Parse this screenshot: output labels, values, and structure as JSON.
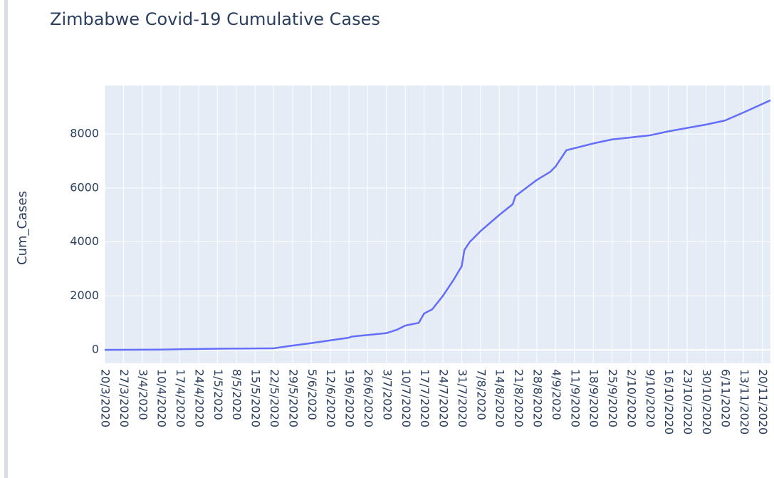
{
  "chart_data": {
    "type": "line",
    "title": "Zimbabwe Covid-19 Cumulative Cases",
    "y_label": "Cum_Cases",
    "grid": true,
    "x": [
      "2020-03-20",
      "2020-04-10",
      "2020-05-01",
      "2020-05-22",
      "2020-05-27",
      "2020-06-05",
      "2020-06-19",
      "2020-06-20",
      "2020-07-03",
      "2020-07-07",
      "2020-07-10",
      "2020-07-15",
      "2020-07-17",
      "2020-07-20",
      "2020-07-24",
      "2020-07-28",
      "2020-07-31",
      "2020-08-01",
      "2020-08-03",
      "2020-08-07",
      "2020-08-14",
      "2020-08-19",
      "2020-08-20",
      "2020-08-24",
      "2020-08-28",
      "2020-09-02",
      "2020-09-04",
      "2020-09-08",
      "2020-09-18",
      "2020-09-25",
      "2020-10-09",
      "2020-10-16",
      "2020-10-30",
      "2020-11-06",
      "2020-11-13",
      "2020-11-23"
    ],
    "series": [
      {
        "name": "Cum_Cases",
        "color": "#636efa",
        "values": [
          0,
          10,
          40,
          56,
          130,
          250,
          450,
          490,
          620,
          750,
          900,
          1000,
          1350,
          1500,
          2000,
          2600,
          3100,
          3700,
          4000,
          4400,
          5000,
          5400,
          5700,
          6000,
          6300,
          6600,
          6800,
          7400,
          7650,
          7800,
          7950,
          8100,
          8350,
          8500,
          8800,
          9250
        ]
      }
    ],
    "xlim": [
      "2020-03-20",
      "2020-11-23"
    ],
    "xticks": [
      {
        "value": "2020-03-20",
        "label": "20/3/2020"
      },
      {
        "value": "2020-03-27",
        "label": "27/3/2020"
      },
      {
        "value": "2020-04-03",
        "label": "3/4/2020"
      },
      {
        "value": "2020-04-10",
        "label": "10/4/2020"
      },
      {
        "value": "2020-04-17",
        "label": "17/4/2020"
      },
      {
        "value": "2020-04-24",
        "label": "24/4/2020"
      },
      {
        "value": "2020-05-01",
        "label": "1/5/2020"
      },
      {
        "value": "2020-05-08",
        "label": "8/5/2020"
      },
      {
        "value": "2020-05-15",
        "label": "15/5/2020"
      },
      {
        "value": "2020-05-22",
        "label": "22/5/2020"
      },
      {
        "value": "2020-05-29",
        "label": "29/5/2020"
      },
      {
        "value": "2020-06-05",
        "label": "5/6/2020"
      },
      {
        "value": "2020-06-12",
        "label": "12/6/2020"
      },
      {
        "value": "2020-06-19",
        "label": "19/6/2020"
      },
      {
        "value": "2020-06-26",
        "label": "26/6/2020"
      },
      {
        "value": "2020-07-03",
        "label": "3/7/2020"
      },
      {
        "value": "2020-07-10",
        "label": "10/7/2020"
      },
      {
        "value": "2020-07-17",
        "label": "17/7/2020"
      },
      {
        "value": "2020-07-24",
        "label": "24/7/2020"
      },
      {
        "value": "2020-07-31",
        "label": "31/7/2020"
      },
      {
        "value": "2020-08-07",
        "label": "7/8/2020"
      },
      {
        "value": "2020-08-14",
        "label": "14/8/2020"
      },
      {
        "value": "2020-08-21",
        "label": "21/8/2020"
      },
      {
        "value": "2020-08-28",
        "label": "28/8/2020"
      },
      {
        "value": "2020-09-04",
        "label": "4/9/2020"
      },
      {
        "value": "2020-09-11",
        "label": "11/9/2020"
      },
      {
        "value": "2020-09-18",
        "label": "18/9/2020"
      },
      {
        "value": "2020-09-25",
        "label": "25/9/2020"
      },
      {
        "value": "2020-10-02",
        "label": "2/10/2020"
      },
      {
        "value": "2020-10-09",
        "label": "9/10/2020"
      },
      {
        "value": "2020-10-16",
        "label": "16/10/2020"
      },
      {
        "value": "2020-10-23",
        "label": "23/10/2020"
      },
      {
        "value": "2020-10-30",
        "label": "30/10/2020"
      },
      {
        "value": "2020-11-06",
        "label": "6/11/2020"
      },
      {
        "value": "2020-11-13",
        "label": "13/11/2020"
      },
      {
        "value": "2020-11-20",
        "label": "20/11/2020"
      }
    ],
    "ylim": [
      -500,
      9800
    ],
    "yticks": [
      0,
      2000,
      4000,
      6000,
      8000
    ]
  }
}
